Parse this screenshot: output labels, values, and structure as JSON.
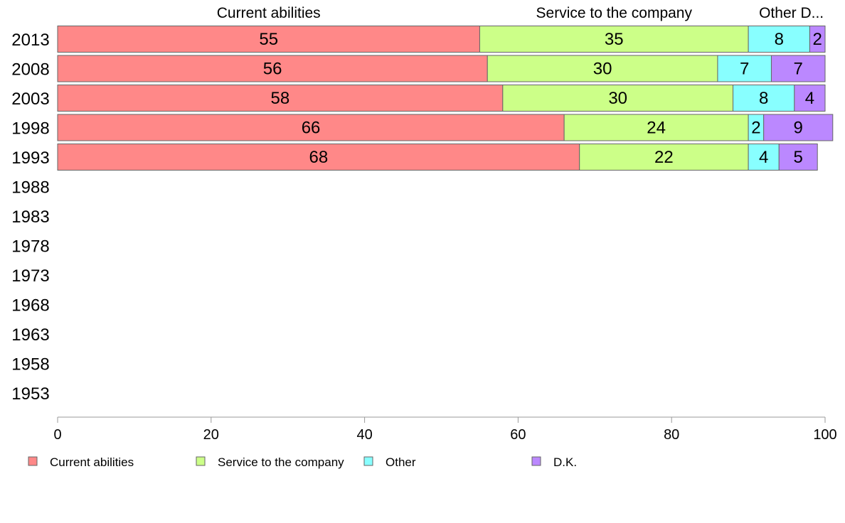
{
  "chart_data": {
    "type": "bar",
    "orientation": "horizontal",
    "stacked": true,
    "categories": [
      "2013",
      "2008",
      "2003",
      "1998",
      "1993",
      "1988",
      "1983",
      "1978",
      "1973",
      "1968",
      "1963",
      "1958",
      "1953"
    ],
    "series": [
      {
        "name": "Current abilities",
        "color": "#ff8888",
        "values": [
          55,
          56,
          58,
          66,
          68,
          null,
          null,
          null,
          null,
          null,
          null,
          null,
          null
        ]
      },
      {
        "name": "Service to the company",
        "color": "#ccff88",
        "values": [
          35,
          30,
          30,
          24,
          22,
          null,
          null,
          null,
          null,
          null,
          null,
          null,
          null
        ]
      },
      {
        "name": "Other",
        "color": "#88ffff",
        "values": [
          8,
          7,
          8,
          2,
          4,
          null,
          null,
          null,
          null,
          null,
          null,
          null,
          null
        ]
      },
      {
        "name": "D.K.",
        "color": "#bb88ff",
        "values": [
          2,
          7,
          4,
          9,
          5,
          null,
          null,
          null,
          null,
          null,
          null,
          null,
          null
        ]
      }
    ],
    "top_labels": [
      "Current abilities",
      "Service to the company",
      "Other D..."
    ],
    "xlim": [
      0,
      100
    ],
    "xticks": [
      0,
      20,
      40,
      60,
      80,
      100
    ],
    "grid": false,
    "legend_position": "bottom"
  }
}
